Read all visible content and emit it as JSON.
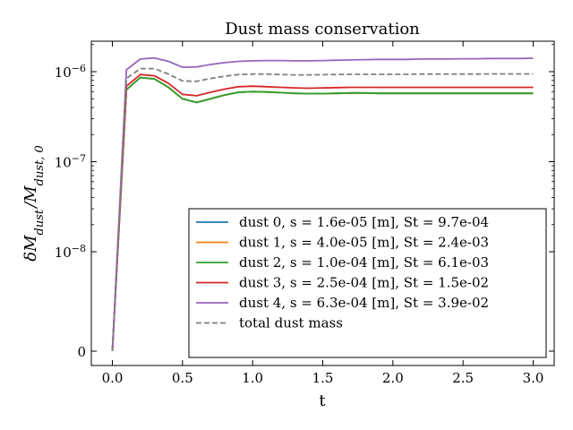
{
  "chart_data": {
    "type": "line",
    "title": "Dust mass conservation",
    "xlabel": "t",
    "ylabel": "δM_dust / M_dust,0",
    "yscale": "symlog",
    "xlim": [
      -0.15,
      3.15
    ],
    "xticks": [
      {
        "value": 0.0,
        "label": "0.0"
      },
      {
        "value": 0.5,
        "label": "0.5"
      },
      {
        "value": 1.0,
        "label": "1.0"
      },
      {
        "value": 1.5,
        "label": "1.5"
      },
      {
        "value": 2.0,
        "label": "2.0"
      },
      {
        "value": 2.5,
        "label": "2.5"
      },
      {
        "value": 3.0,
        "label": "3.0"
      }
    ],
    "yticks": [
      {
        "value": 0,
        "base": "0",
        "exp": ""
      },
      {
        "value": 1e-08,
        "base": "10",
        "exp": "−8"
      },
      {
        "value": 1e-07,
        "base": "10",
        "exp": "−7"
      },
      {
        "value": 1e-06,
        "base": "10",
        "exp": "−6"
      }
    ],
    "grid": false,
    "legend_position": "lower-right",
    "x": [
      0.0,
      0.1,
      0.2,
      0.3,
      0.4,
      0.5,
      0.6,
      0.7,
      0.8,
      0.9,
      1.0,
      1.1,
      1.2,
      1.3,
      1.4,
      1.5,
      1.6,
      1.7,
      1.8,
      1.9,
      2.0,
      2.1,
      2.2,
      2.3,
      2.4,
      2.5,
      2.6,
      2.7,
      2.8,
      2.9,
      3.0
    ],
    "series": [
      {
        "name": "dust 0, s = 1.6e-05 [m], St = 9.7e-04",
        "color": "#1f77b4",
        "values": [
          0,
          6.3e-07,
          8.6e-07,
          8.3e-07,
          6.7e-07,
          5e-07,
          4.55e-07,
          5e-07,
          5.5e-07,
          5.9e-07,
          6e-07,
          5.95e-07,
          5.85e-07,
          5.75e-07,
          5.7e-07,
          5.7e-07,
          5.75e-07,
          5.8e-07,
          5.8e-07,
          5.75e-07,
          5.75e-07,
          5.75e-07,
          5.75e-07,
          5.75e-07,
          5.75e-07,
          5.75e-07,
          5.75e-07,
          5.75e-07,
          5.75e-07,
          5.75e-07,
          5.75e-07
        ]
      },
      {
        "name": "dust 1, s = 4.0e-05 [m], St = 2.4e-03",
        "color": "#ff7f0e",
        "values": [
          0,
          6.3e-07,
          8.6e-07,
          8.3e-07,
          6.7e-07,
          5e-07,
          4.55e-07,
          5e-07,
          5.5e-07,
          5.9e-07,
          6e-07,
          5.95e-07,
          5.85e-07,
          5.75e-07,
          5.7e-07,
          5.7e-07,
          5.75e-07,
          5.8e-07,
          5.8e-07,
          5.75e-07,
          5.75e-07,
          5.75e-07,
          5.75e-07,
          5.75e-07,
          5.75e-07,
          5.75e-07,
          5.75e-07,
          5.75e-07,
          5.75e-07,
          5.75e-07,
          5.75e-07
        ]
      },
      {
        "name": "dust 2, s = 1.0e-04 [m], St = 6.1e-03",
        "color": "#2ca02c",
        "values": [
          0,
          6.3e-07,
          8.6e-07,
          8.3e-07,
          6.7e-07,
          5e-07,
          4.55e-07,
          5e-07,
          5.5e-07,
          5.9e-07,
          6e-07,
          5.95e-07,
          5.85e-07,
          5.75e-07,
          5.7e-07,
          5.7e-07,
          5.75e-07,
          5.8e-07,
          5.8e-07,
          5.75e-07,
          5.75e-07,
          5.75e-07,
          5.75e-07,
          5.75e-07,
          5.75e-07,
          5.75e-07,
          5.75e-07,
          5.75e-07,
          5.75e-07,
          5.75e-07,
          5.75e-07
        ]
      },
      {
        "name": "dust 3, s = 2.5e-04 [m], St = 1.5e-02",
        "color": "#d62728",
        "values": [
          0,
          6.9e-07,
          9.3e-07,
          9e-07,
          7.4e-07,
          5.6e-07,
          5.4e-07,
          5.9e-07,
          6.4e-07,
          6.8e-07,
          6.9e-07,
          6.8e-07,
          6.7e-07,
          6.6e-07,
          6.55e-07,
          6.6e-07,
          6.65e-07,
          6.7e-07,
          6.7e-07,
          6.7e-07,
          6.7e-07,
          6.7e-07,
          6.7e-07,
          6.7e-07,
          6.7e-07,
          6.7e-07,
          6.7e-07,
          6.7e-07,
          6.7e-07,
          6.7e-07,
          6.7e-07
        ]
      },
      {
        "name": "dust 4, s = 6.3e-04 [m], St = 3.9e-02",
        "color": "#9467bd",
        "values": [
          0,
          1.05e-06,
          1.38e-06,
          1.42e-06,
          1.3e-06,
          1.12e-06,
          1.13e-06,
          1.2e-06,
          1.26e-06,
          1.3e-06,
          1.32e-06,
          1.33e-06,
          1.33e-06,
          1.32e-06,
          1.32e-06,
          1.33e-06,
          1.34e-06,
          1.35e-06,
          1.36e-06,
          1.37e-06,
          1.37e-06,
          1.37e-06,
          1.38e-06,
          1.38e-06,
          1.38e-06,
          1.39e-06,
          1.39e-06,
          1.4e-06,
          1.4e-06,
          1.4e-06,
          1.41e-06
        ]
      },
      {
        "name": "total dust mass",
        "color": "#7f7f7f",
        "dashed": true,
        "values": [
          0,
          8.4e-07,
          1.08e-06,
          1.08e-06,
          9.4e-07,
          7.9e-07,
          7.8e-07,
          8.4e-07,
          8.9e-07,
          9.3e-07,
          9.4e-07,
          9.4e-07,
          9.3e-07,
          9.2e-07,
          9.2e-07,
          9.25e-07,
          9.3e-07,
          9.35e-07,
          9.35e-07,
          9.35e-07,
          9.35e-07,
          9.35e-07,
          9.4e-07,
          9.4e-07,
          9.4e-07,
          9.4e-07,
          9.4e-07,
          9.45e-07,
          9.45e-07,
          9.45e-07,
          9.45e-07
        ]
      }
    ]
  }
}
